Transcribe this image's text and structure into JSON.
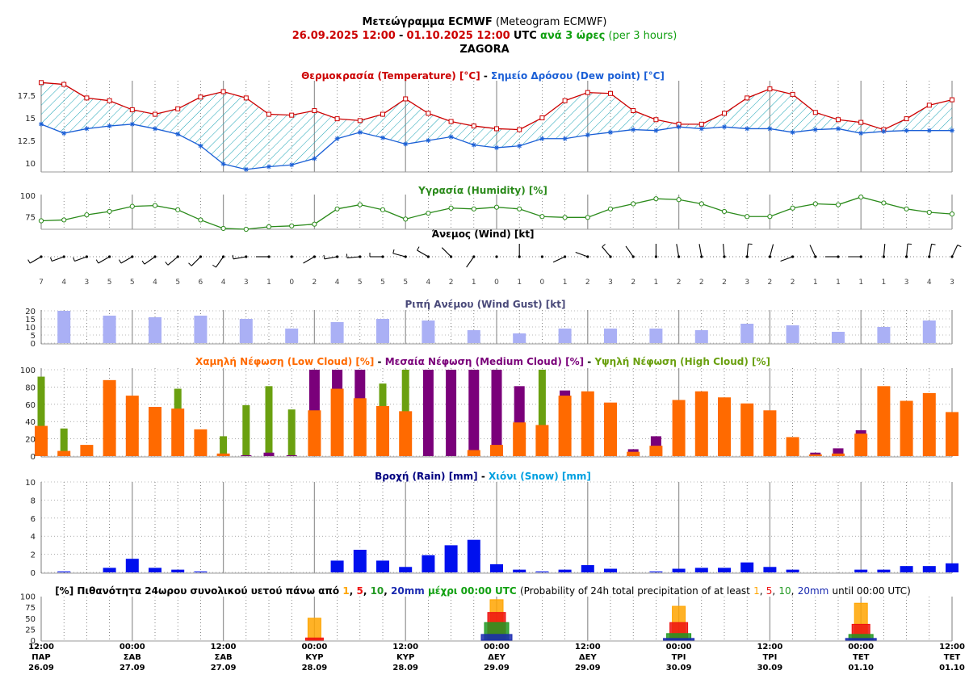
{
  "header": {
    "title_bold": "Μετεώγραμμα ECMWF",
    "title_rest": "(Meteogram ECMWF)",
    "start": "26.09.2025 12:00",
    "sep": "-",
    "end": "01.10.2025 12:00",
    "utc": "UTC",
    "step": "ανά 3 ώρες",
    "step_en": "(per 3 hours)",
    "location": "ZAGORA"
  },
  "panel_titles": {
    "temp_a": "Θερμοκρασία (Temperature) [°C]",
    "temp_sep": "-",
    "temp_b": "Σημείο Δρόσου (Dew point) [°C]",
    "hum": "Υγρασία (Humidity) [%]",
    "wind": "Άνεμος (Wind) [kt]",
    "gust": "Ριπή Ανέμου (Wind Gust) [kt]",
    "cloud_low": "Χαμηλή Νέφωση (Low Cloud) [%]",
    "cloud_sep1": "-",
    "cloud_mid": "Μεσαία Νέφωση (Medium Cloud) [%]",
    "cloud_sep2": "-",
    "cloud_high": "Υψηλή Νέφωση (High Cloud) [%]",
    "rain": "Βροχή (Rain) [mm]",
    "rain_sep": "-",
    "snow": "Χιόνι (Snow) [mm]",
    "prob_a": "[%] Πιθανότητα 24ωρου συνολικού υετού πάνω από",
    "prob_1": "1",
    "prob_c1": ",",
    "prob_5": "5",
    "prob_c2": ",",
    "prob_10": "10",
    "prob_c3": ",",
    "prob_20": "20mm",
    "prob_b": "μέχρι 00:00 UTC",
    "prob_en_a": "(Probability of 24h total precipitation of at least",
    "prob_en_1": "1",
    "prob_en_c1": ",",
    "prob_en_5": "5",
    "prob_en_c2": ",",
    "prob_en_10": "10",
    "prob_en_c3": ",",
    "prob_en_20": "20mm",
    "prob_en_b": "until 00:00 UTC)"
  },
  "colors": {
    "temp": "#cc0000",
    "dew": "#1a5fd6",
    "hatch": "#1aa3b5",
    "humidity": "#2a8a1a",
    "gust": "#aab0f5",
    "low_cloud": "#ff6a00",
    "mid_cloud": "#7a007a",
    "high_cloud": "#6aa010",
    "rain": "#0010ee",
    "snow": "#00a0e0",
    "p1": "#ffa500",
    "p5": "#ee1111",
    "p10": "#229922",
    "p20": "#1a2ab0",
    "green_text": "#11a011",
    "navy_text": "#000080"
  },
  "chart_data": [
    {
      "id": "temperature",
      "type": "line",
      "ylim": [
        9,
        19
      ],
      "yticks": [
        10.0,
        12.5,
        15.0,
        17.5
      ],
      "series": [
        {
          "name": "Θερμοκρασία (Temperature) [°C]",
          "values": [
            18.9,
            18.7,
            17.2,
            16.9,
            15.9,
            15.4,
            16.0,
            17.3,
            17.9,
            17.2,
            15.4,
            15.3,
            15.8,
            14.9,
            14.7,
            15.4,
            17.1,
            15.5,
            14.6,
            14.1,
            13.8,
            13.7,
            15.0,
            16.9,
            17.8,
            17.7,
            15.8,
            14.8,
            14.3,
            14.3,
            15.5,
            17.2,
            18.2,
            17.6,
            15.6,
            14.8,
            14.5,
            13.7,
            14.9,
            16.4,
            17.0
          ]
        },
        {
          "name": "Σημείο Δρόσου (Dew point) [°C]",
          "values": [
            14.3,
            13.3,
            13.8,
            14.1,
            14.3,
            13.8,
            13.2,
            11.9,
            9.9,
            9.3,
            9.6,
            9.8,
            10.5,
            12.7,
            13.4,
            12.8,
            12.1,
            12.5,
            12.9,
            12.0,
            11.7,
            11.9,
            12.7,
            12.7,
            13.1,
            13.4,
            13.7,
            13.6,
            14.0,
            13.8,
            14.0,
            13.8,
            13.8,
            13.4,
            13.7,
            13.8,
            13.3,
            13.5,
            13.6,
            13.6,
            13.6
          ]
        }
      ]
    },
    {
      "id": "humidity",
      "type": "line",
      "ylim": [
        60,
        100
      ],
      "yticks": [
        75,
        100
      ],
      "series": [
        {
          "name": "Υγρασία (Humidity) [%]",
          "values": [
            70,
            71,
            77,
            81,
            87,
            88,
            83,
            71,
            61,
            60,
            63,
            64,
            66,
            84,
            89,
            83,
            72,
            79,
            85,
            84,
            86,
            84,
            75,
            74,
            74,
            84,
            90,
            96,
            95,
            90,
            81,
            75,
            75,
            85,
            90,
            89,
            98,
            91,
            84,
            80,
            78
          ]
        }
      ]
    },
    {
      "id": "wind",
      "type": "table",
      "speeds": [
        7,
        4,
        3,
        5,
        5,
        4,
        5,
        6,
        4,
        3,
        1,
        0,
        2,
        4,
        5,
        5,
        5,
        4,
        2,
        1,
        0,
        1,
        0,
        1,
        2,
        3,
        2,
        1,
        2,
        2,
        2,
        3,
        2,
        2,
        1,
        1,
        1,
        1,
        3,
        4,
        3
      ],
      "directions_deg": [
        240,
        250,
        250,
        240,
        240,
        235,
        230,
        225,
        215,
        260,
        270,
        0,
        240,
        260,
        265,
        270,
        285,
        300,
        315,
        215,
        0,
        0,
        0,
        245,
        290,
        320,
        325,
        0,
        350,
        350,
        355,
        5,
        15,
        250,
        335,
        270,
        270,
        5,
        5,
        10,
        25
      ]
    },
    {
      "id": "gust",
      "type": "bar",
      "ylim": [
        0,
        20
      ],
      "yticks": [
        0,
        5,
        10,
        15,
        20
      ],
      "series": [
        {
          "name": "Ριπή Ανέμου (Wind Gust) [kt]",
          "values": [
            null,
            20,
            null,
            17,
            null,
            16,
            null,
            17,
            null,
            15,
            null,
            9,
            null,
            13,
            null,
            15,
            null,
            14,
            null,
            8,
            null,
            6,
            null,
            9,
            null,
            9,
            null,
            9,
            null,
            8,
            null,
            12,
            null,
            11,
            null,
            7,
            null,
            10,
            null,
            14,
            null
          ]
        }
      ]
    },
    {
      "id": "clouds",
      "type": "bar",
      "ylim": [
        0,
        100
      ],
      "yticks": [
        0,
        20,
        40,
        60,
        80,
        100
      ],
      "series": [
        {
          "name": "Χαμηλή Νέφωση (Low Cloud) [%]",
          "values": [
            35,
            6,
            13,
            88,
            70,
            57,
            55,
            31,
            3,
            0,
            0,
            0,
            53,
            78,
            67,
            58,
            52,
            0,
            0,
            7,
            13,
            39,
            36,
            70,
            75,
            62,
            5,
            12,
            65,
            75,
            68,
            61,
            53,
            22,
            2,
            3,
            26,
            81,
            64,
            73,
            51
          ]
        },
        {
          "name": "Μεσαία Νέφωση (Medium Cloud) [%]",
          "values": [
            0,
            0,
            0,
            0,
            0,
            0,
            0,
            0,
            0,
            1,
            4,
            1,
            100,
            100,
            100,
            0,
            0,
            100,
            100,
            100,
            100,
            81,
            0,
            76,
            0,
            0,
            8,
            23,
            0,
            0,
            0,
            0,
            0,
            0,
            4,
            9,
            30,
            0,
            0,
            0,
            0
          ]
        },
        {
          "name": "Υψηλή Νέφωση (High Cloud) [%]",
          "values": [
            92,
            32,
            0,
            0,
            0,
            0,
            78,
            0,
            23,
            59,
            81,
            54,
            0,
            0,
            0,
            84,
            100,
            0,
            0,
            0,
            0,
            0,
            100,
            0,
            0,
            0,
            0,
            0,
            0,
            0,
            0,
            0,
            0,
            0,
            0,
            0,
            0,
            0,
            0,
            0,
            0
          ]
        }
      ]
    },
    {
      "id": "rain",
      "type": "bar",
      "ylim": [
        0,
        10
      ],
      "yticks": [
        0,
        2,
        4,
        6,
        8,
        10
      ],
      "series": [
        {
          "name": "Βροχή (Rain) [mm]",
          "values": [
            0,
            0.1,
            0,
            0.5,
            1.5,
            0.5,
            0.3,
            0.1,
            0,
            0,
            0,
            0,
            0,
            1.3,
            2.5,
            1.3,
            0.6,
            1.9,
            3.0,
            3.6,
            0.9,
            0.3,
            0.1,
            0.3,
            0.8,
            0.4,
            0,
            0.1,
            0.4,
            0.5,
            0.5,
            1.1,
            0.6,
            0.3,
            0,
            0,
            0.3,
            0.3,
            0.7,
            0.7,
            1.0
          ]
        },
        {
          "name": "Χιόνι (Snow) [mm]",
          "values": [
            0,
            0,
            0,
            0,
            0,
            0,
            0,
            0,
            0,
            0,
            0,
            0,
            0,
            0,
            0,
            0,
            0,
            0,
            0,
            0,
            0,
            0,
            0,
            0,
            0,
            0,
            0,
            0,
            0,
            0,
            0,
            0,
            0,
            0,
            0,
            0,
            0,
            0,
            0,
            0,
            0
          ]
        }
      ]
    },
    {
      "id": "probability",
      "type": "bar",
      "ylim": [
        0,
        100
      ],
      "yticks": [
        0,
        25,
        50,
        75,
        100
      ],
      "x": [
        "00:00 ΚΥΡ 28.09",
        "00:00 ΔΕΥ 29.09",
        "00:00 ΤΡΙ 30.09",
        "00:00 ΤΕΤ 01.10"
      ],
      "series": [
        {
          "name": "1",
          "values": [
            50,
            92,
            77,
            84
          ]
        },
        {
          "name": "5",
          "values": [
            5,
            63,
            40,
            36
          ]
        },
        {
          "name": "10",
          "values": [
            0,
            40,
            15,
            13
          ]
        },
        {
          "name": "20mm",
          "values": [
            0,
            13,
            4,
            4
          ]
        }
      ]
    }
  ],
  "x_axis": [
    {
      "t": "12:00",
      "d": "ΠΑΡ",
      "dt": "26.09"
    },
    {
      "t": "00:00",
      "d": "ΣΑΒ",
      "dt": "27.09"
    },
    {
      "t": "12:00",
      "d": "ΣΑΒ",
      "dt": "27.09"
    },
    {
      "t": "00:00",
      "d": "ΚΥΡ",
      "dt": "28.09"
    },
    {
      "t": "12:00",
      "d": "ΚΥΡ",
      "dt": "28.09"
    },
    {
      "t": "00:00",
      "d": "ΔΕΥ",
      "dt": "29.09"
    },
    {
      "t": "12:00",
      "d": "ΔΕΥ",
      "dt": "29.09"
    },
    {
      "t": "00:00",
      "d": "ΤΡΙ",
      "dt": "30.09"
    },
    {
      "t": "12:00",
      "d": "ΤΡΙ",
      "dt": "30.09"
    },
    {
      "t": "00:00",
      "d": "ΤΕΤ",
      "dt": "01.10"
    },
    {
      "t": "12:00",
      "d": "ΤΕΤ",
      "dt": "01.10"
    }
  ]
}
